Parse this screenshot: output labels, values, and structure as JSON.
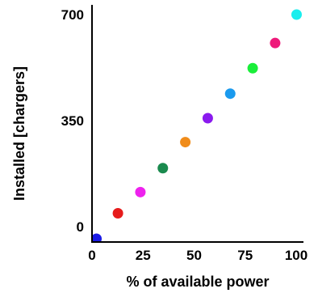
{
  "chart_data": {
    "type": "scatter",
    "title": "",
    "xlabel": "% of available power",
    "ylabel": "Installed [chargers]",
    "xlim": [
      0,
      100
    ],
    "ylim": [
      -45,
      735
    ],
    "xticks": [
      0,
      25,
      50,
      75,
      100
    ],
    "yticks": [
      0,
      350,
      700
    ],
    "grid": false,
    "legend": "none",
    "points": [
      {
        "x": 1,
        "y": -40,
        "color": "#1b1be6"
      },
      {
        "x": 11.5,
        "y": 44,
        "color": "#e61b1b"
      },
      {
        "x": 22.5,
        "y": 114,
        "color": "#ee22ee"
      },
      {
        "x": 33.5,
        "y": 193,
        "color": "#1a8a4e"
      },
      {
        "x": 44.5,
        "y": 279,
        "color": "#f08c1a"
      },
      {
        "x": 55.5,
        "y": 358,
        "color": "#8a1aee"
      },
      {
        "x": 66.5,
        "y": 439,
        "color": "#1a9aee"
      },
      {
        "x": 77.5,
        "y": 523,
        "color": "#1aee3a"
      },
      {
        "x": 88.5,
        "y": 606,
        "color": "#ee1a7a"
      },
      {
        "x": 99,
        "y": 700,
        "color": "#1aeeee"
      }
    ]
  }
}
